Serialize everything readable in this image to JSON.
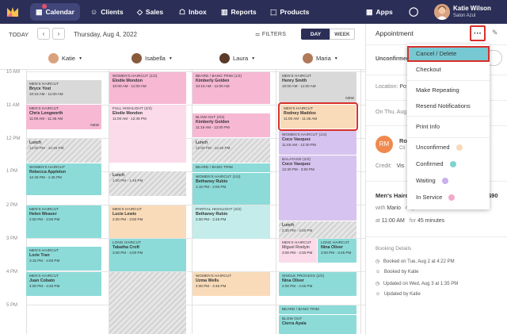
{
  "nav": {
    "items": [
      {
        "label": "Calendar",
        "icon": "calendar-icon"
      },
      {
        "label": "Clients",
        "icon": "clients-icon"
      },
      {
        "label": "Sales",
        "icon": "tag-icon"
      },
      {
        "label": "Inbox",
        "icon": "inbox-icon"
      },
      {
        "label": "Reports",
        "icon": "bar-chart-icon"
      },
      {
        "label": "Products",
        "icon": "box-icon"
      }
    ],
    "apps_label": "Apps",
    "user_name": "Katie Wilson",
    "user_salon": "Salon Azul"
  },
  "toolbar": {
    "today": "TODAY",
    "prev": "‹",
    "next": "›",
    "date": "Thursday, Aug 4, 2022",
    "filters": "FILTERS",
    "day": "DAY",
    "week": "WEEK"
  },
  "staff": [
    "Katie",
    "Isabella",
    "Laura",
    "Maria"
  ],
  "hours": [
    "10 AM",
    "11 AM",
    "12 PM",
    "1 PM",
    "2 PM",
    "3 PM",
    "4 PM",
    "5 PM"
  ],
  "appointments": {
    "katie": [
      {
        "service": "MEN'S HAIRCUT",
        "client": "Bryce Yost",
        "time": "10:15 AM - 11:00 AM"
      },
      {
        "service": "MEN'S HAIRCUT",
        "client": "Chris Longworth",
        "time": "11:00 AM - 11:45 AM",
        "badge": "NEW"
      },
      {
        "service": "Lunch",
        "time": "12:00 PM - 12:45 PM"
      },
      {
        "service": "WOMEN'S HAIRCUT",
        "client": "Rebecca Appleton",
        "time": "12:45 PM - 1:45 PM"
      },
      {
        "service": "MEN'S HAIRCUT",
        "client": "Helen Weaver",
        "time": "2:00 PM - 3:00 PM"
      },
      {
        "service": "MEN'S HAIRCUT",
        "client": "Lorie Tran",
        "time": "3:15 PM - 4:00 PM"
      },
      {
        "service": "MEN'S HAIRCUT",
        "client": "Juan Cobato",
        "time": "4:00 PM - 4:45 PM"
      }
    ],
    "isabella": [
      {
        "service": "WOMEN'S HAIRCUT",
        "step": "(1/2)",
        "client": "Elodie Mondon",
        "time": "10:00 AM - 11:00 AM"
      },
      {
        "service": "FULL HIGHLIGHT",
        "step": "(2/2)",
        "client": "Elodie Mondon",
        "time": "11:00 AM - 12:45 PM"
      },
      {
        "service": "Lunch",
        "time": "1:00 PM - 1:45 PM"
      },
      {
        "service": "MEN'S HAIRCUT",
        "client": "Lucie Lewis",
        "time": "2:00 PM - 3:00 PM"
      },
      {
        "service": "LONG HAIRCUT",
        "client": "Tabatha Croft",
        "time": "3:00 PM - 4:00 PM"
      }
    ],
    "laura": [
      {
        "service": "BEARD / BANG TRIM",
        "step": "(1/2)",
        "client": "Kimberly Golden",
        "time": "10:15 AM - 11:00 AM"
      },
      {
        "service": "BLOW OUT",
        "step": "(2/2)",
        "client": "Kimberly Golden",
        "time": "11:15 AM - 12:00 PM"
      },
      {
        "service": "Lunch",
        "time": "12:00 PM - 12:45 PM"
      },
      {
        "service": "BEARD / BANG TRIM",
        "client": "",
        "time": ""
      },
      {
        "service": "WOMEN'S HAIRCUT",
        "step": "(1/2)",
        "client": "Bethaney Rubio",
        "time": "1:15 PM - 2:00 PM"
      },
      {
        "service": "PARTIAL HIGHLIGHT",
        "step": "(2/2)",
        "client": "Bethaney Rubio",
        "time": "2:00 PM - 2:45 PM"
      },
      {
        "service": "WOMEN'S HAIRCUT",
        "client": "Uzma Wells",
        "time": "4:00 PM - 4:45 PM"
      }
    ],
    "maria": [
      {
        "service": "MEN'S HAIRCUT",
        "client": "Henry Smith",
        "time": "10:00 AM - 11:00 AM",
        "badge": "NEW"
      },
      {
        "service": "MEN'S HAIRCUT",
        "client": "Rodney Maddox",
        "time": "11:00 AM - 11:45 AM"
      },
      {
        "service": "WOMEN'S HAIRCUT",
        "step": "(1/2)",
        "client": "Coco Vasquez",
        "time": "11:45 AM - 12:30 PM"
      },
      {
        "service": "BALAYAGE",
        "step": "(2/2)",
        "client": "Coco Vasquez",
        "time": "12:30 PM - 3:00 PM"
      },
      {
        "service": "Lunch",
        "time": "2:30 PM - 3:00 PM"
      },
      {
        "service": "MEN'S HAIRCUT",
        "client": "Miguel Roelyin",
        "time": "3:00 PM - 3:30 PM"
      },
      {
        "service": "LONG HAIRCUT",
        "client": "Nina Oliver",
        "time": "3:00 PM - 3:45 PM"
      },
      {
        "service": "SINGLE PROCESS",
        "step": "(2/2)",
        "client": "Nina Oliver",
        "time": "4:00 PM - 4:45 PM"
      },
      {
        "service": "BEARD / BANG TRIM",
        "client": "",
        "time": ""
      },
      {
        "service": "BLOW OUT",
        "client": "Cierra Ayala",
        "time": ""
      }
    ]
  },
  "panel": {
    "title": "Appointment",
    "status": "Unconfirmed",
    "location_label": "Location:",
    "location_value": "Po",
    "on_label": "On Thu, Aug",
    "client_initials": "RM",
    "client_name": "Ro",
    "client_sub": "Cli",
    "credit_label": "Credit:",
    "credit_value": "Vis",
    "service": "Men's Hairc",
    "price": "$90",
    "with_label": "with",
    "with_value": "Mario",
    "request_label": "request:",
    "request_value": "none",
    "at_label": "at",
    "at_value": "11:00 AM",
    "for_label": "for",
    "for_value": "45 minutes",
    "booking_details": "Booking Details",
    "history": [
      "Booked on Tue, Aug 2 at 4:22 PM",
      "Booked by Katie",
      "Updated on Wed, Aug 3 at 1:35 PM",
      "Updated by Katie"
    ],
    "more": "···",
    "edit": "✎"
  },
  "dropdown": {
    "items": [
      {
        "label": "Cancel / Delete"
      },
      {
        "label": "Checkout"
      },
      {
        "label": "Make Repeating"
      },
      {
        "label": "Resend Notifications"
      },
      {
        "label": "Print Info"
      },
      {
        "label": "Unconfirmed",
        "dot": "#f9d8b8"
      },
      {
        "label": "Confirmed",
        "dot": "#7fd3d0"
      },
      {
        "label": "Waiting",
        "dot": "#c8b0ec"
      },
      {
        "label": "In Service",
        "dot": "#f3a9c9"
      }
    ]
  },
  "colors": {
    "nav_bg": "#2b2f57",
    "accent_teal": "#76c9d3",
    "highlight_red": "#d9302b"
  }
}
